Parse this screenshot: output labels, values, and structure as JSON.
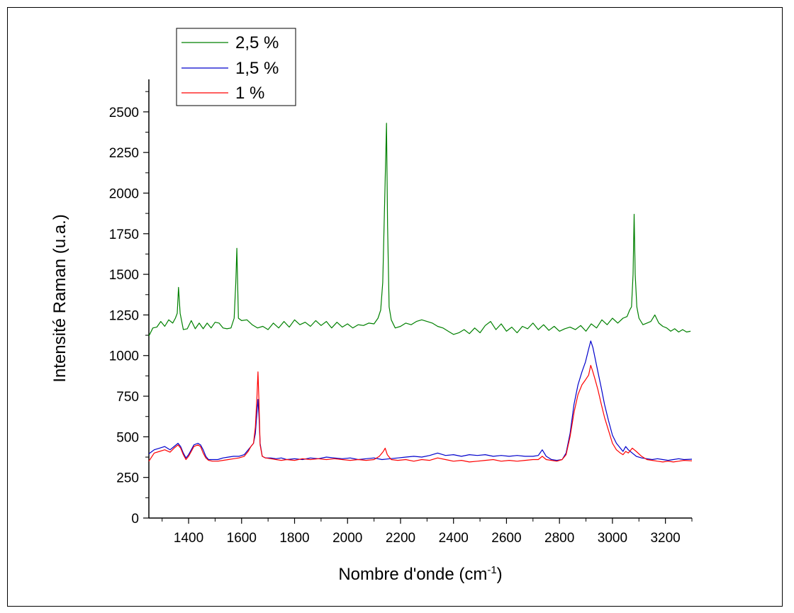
{
  "chart_data": {
    "type": "line",
    "xlabel": "Nombre d'onde (cm",
    "xlabel_superscript": "-1",
    "xlabel_suffix": ")",
    "ylabel": "Intensité Raman (u.a.)",
    "xlim": [
      1250,
      3300
    ],
    "ylim": [
      0,
      2700
    ],
    "x_ticks": [
      1400,
      1600,
      1800,
      2000,
      2200,
      2400,
      2600,
      2800,
      3000,
      3200
    ],
    "y_ticks": [
      0,
      250,
      500,
      750,
      1000,
      1250,
      1500,
      1750,
      2000,
      2250,
      2500
    ],
    "grid": false,
    "legend_position": "top-left",
    "series": [
      {
        "name": "2,5 %",
        "color": "#008000",
        "x": [
          1250,
          1265,
          1280,
          1295,
          1310,
          1325,
          1340,
          1350,
          1357,
          1362,
          1368,
          1380,
          1395,
          1410,
          1425,
          1440,
          1455,
          1470,
          1485,
          1500,
          1515,
          1530,
          1545,
          1560,
          1572,
          1578,
          1582,
          1588,
          1600,
          1620,
          1640,
          1660,
          1680,
          1700,
          1720,
          1740,
          1760,
          1780,
          1800,
          1820,
          1840,
          1860,
          1880,
          1900,
          1920,
          1940,
          1960,
          1980,
          2000,
          2020,
          2040,
          2060,
          2080,
          2100,
          2115,
          2125,
          2133,
          2138,
          2143,
          2147,
          2151,
          2157,
          2165,
          2180,
          2200,
          2220,
          2240,
          2260,
          2280,
          2300,
          2320,
          2340,
          2360,
          2380,
          2400,
          2420,
          2440,
          2460,
          2480,
          2500,
          2520,
          2540,
          2560,
          2580,
          2600,
          2620,
          2640,
          2660,
          2680,
          2700,
          2720,
          2740,
          2760,
          2780,
          2800,
          2820,
          2840,
          2860,
          2880,
          2900,
          2920,
          2940,
          2960,
          2980,
          3000,
          3020,
          3040,
          3055,
          3065,
          3072,
          3078,
          3082,
          3086,
          3092,
          3100,
          3115,
          3130,
          3145,
          3160,
          3175,
          3190,
          3205,
          3220,
          3235,
          3250,
          3265,
          3280,
          3295
        ],
        "values": [
          1120,
          1170,
          1175,
          1210,
          1180,
          1220,
          1200,
          1230,
          1260,
          1420,
          1260,
          1160,
          1165,
          1215,
          1165,
          1200,
          1165,
          1200,
          1170,
          1205,
          1200,
          1170,
          1165,
          1170,
          1230,
          1450,
          1660,
          1230,
          1215,
          1220,
          1190,
          1170,
          1180,
          1160,
          1200,
          1170,
          1210,
          1175,
          1220,
          1190,
          1205,
          1180,
          1215,
          1185,
          1210,
          1170,
          1205,
          1175,
          1195,
          1170,
          1190,
          1185,
          1200,
          1195,
          1230,
          1280,
          1450,
          1800,
          2150,
          2430,
          1800,
          1300,
          1220,
          1170,
          1180,
          1200,
          1190,
          1210,
          1220,
          1210,
          1200,
          1180,
          1170,
          1150,
          1130,
          1140,
          1160,
          1135,
          1170,
          1140,
          1185,
          1210,
          1160,
          1195,
          1150,
          1175,
          1140,
          1180,
          1165,
          1200,
          1160,
          1190,
          1155,
          1180,
          1150,
          1165,
          1175,
          1160,
          1185,
          1150,
          1195,
          1170,
          1220,
          1190,
          1230,
          1200,
          1230,
          1240,
          1280,
          1300,
          1500,
          1870,
          1500,
          1300,
          1230,
          1190,
          1200,
          1210,
          1250,
          1200,
          1180,
          1170,
          1150,
          1165,
          1145,
          1160,
          1145,
          1150
        ]
      },
      {
        "name": "1,5 %",
        "color": "#0000cc",
        "x": [
          1250,
          1270,
          1290,
          1310,
          1330,
          1345,
          1360,
          1370,
          1380,
          1390,
          1400,
          1410,
          1420,
          1435,
          1445,
          1455,
          1465,
          1475,
          1490,
          1510,
          1530,
          1550,
          1570,
          1590,
          1610,
          1625,
          1635,
          1645,
          1652,
          1658,
          1662,
          1666,
          1670,
          1678,
          1690,
          1710,
          1730,
          1750,
          1770,
          1800,
          1830,
          1860,
          1890,
          1920,
          1950,
          1980,
          2010,
          2040,
          2070,
          2100,
          2130,
          2160,
          2190,
          2220,
          2250,
          2280,
          2310,
          2340,
          2370,
          2400,
          2430,
          2460,
          2490,
          2520,
          2550,
          2580,
          2610,
          2640,
          2670,
          2700,
          2720,
          2735,
          2750,
          2770,
          2790,
          2810,
          2825,
          2840,
          2855,
          2870,
          2885,
          2898,
          2910,
          2918,
          2926,
          2935,
          2945,
          2958,
          2970,
          2985,
          3000,
          3015,
          3030,
          3040,
          3050,
          3060,
          3075,
          3090,
          3110,
          3130,
          3150,
          3170,
          3190,
          3210,
          3230,
          3250,
          3270,
          3300
        ],
        "values": [
          395,
          420,
          430,
          440,
          420,
          440,
          460,
          440,
          400,
          370,
          390,
          420,
          450,
          460,
          450,
          420,
          380,
          360,
          360,
          360,
          370,
          375,
          380,
          380,
          390,
          420,
          440,
          460,
          520,
          650,
          730,
          620,
          460,
          380,
          370,
          370,
          365,
          370,
          360,
          365,
          360,
          370,
          365,
          375,
          370,
          365,
          370,
          360,
          365,
          370,
          360,
          365,
          370,
          375,
          380,
          375,
          385,
          400,
          385,
          390,
          380,
          390,
          385,
          390,
          380,
          385,
          380,
          385,
          380,
          380,
          385,
          420,
          380,
          360,
          355,
          360,
          400,
          520,
          700,
          820,
          900,
          960,
          1040,
          1090,
          1050,
          980,
          900,
          800,
          700,
          600,
          510,
          460,
          430,
          410,
          440,
          420,
          400,
          380,
          370,
          365,
          360,
          365,
          360,
          355,
          360,
          365,
          360,
          362
        ]
      },
      {
        "name": "1 %",
        "color": "#ff0000",
        "x": [
          1250,
          1270,
          1290,
          1310,
          1330,
          1345,
          1360,
          1370,
          1380,
          1390,
          1400,
          1410,
          1420,
          1435,
          1445,
          1455,
          1465,
          1475,
          1490,
          1510,
          1530,
          1550,
          1570,
          1590,
          1610,
          1625,
          1635,
          1645,
          1652,
          1658,
          1662,
          1666,
          1670,
          1678,
          1690,
          1710,
          1730,
          1750,
          1770,
          1800,
          1830,
          1860,
          1890,
          1920,
          1950,
          1980,
          2010,
          2040,
          2070,
          2100,
          2120,
          2135,
          2142,
          2150,
          2165,
          2190,
          2220,
          2250,
          2280,
          2310,
          2340,
          2370,
          2400,
          2430,
          2460,
          2490,
          2520,
          2550,
          2580,
          2610,
          2640,
          2670,
          2700,
          2720,
          2735,
          2750,
          2770,
          2790,
          2810,
          2825,
          2840,
          2855,
          2870,
          2885,
          2898,
          2910,
          2918,
          2926,
          2935,
          2945,
          2958,
          2970,
          2985,
          3000,
          3015,
          3030,
          3040,
          3050,
          3060,
          3075,
          3090,
          3110,
          3130,
          3150,
          3170,
          3190,
          3210,
          3230,
          3250,
          3270,
          3300
        ],
        "values": [
          350,
          400,
          410,
          420,
          405,
          430,
          450,
          430,
          390,
          360,
          380,
          410,
          440,
          450,
          440,
          400,
          370,
          355,
          350,
          350,
          355,
          360,
          365,
          370,
          380,
          410,
          440,
          460,
          560,
          750,
          900,
          700,
          450,
          380,
          370,
          365,
          360,
          355,
          360,
          355,
          365,
          360,
          365,
          360,
          365,
          360,
          355,
          360,
          355,
          360,
          380,
          410,
          430,
          390,
          360,
          355,
          360,
          350,
          360,
          355,
          370,
          360,
          350,
          355,
          345,
          350,
          355,
          360,
          350,
          355,
          350,
          355,
          360,
          360,
          380,
          360,
          355,
          350,
          360,
          390,
          500,
          650,
          760,
          820,
          850,
          880,
          940,
          900,
          850,
          790,
          700,
          620,
          540,
          460,
          420,
          400,
          390,
          410,
          400,
          430,
          410,
          380,
          360,
          355,
          350,
          345,
          350,
          345,
          350,
          355,
          352
        ]
      }
    ]
  }
}
